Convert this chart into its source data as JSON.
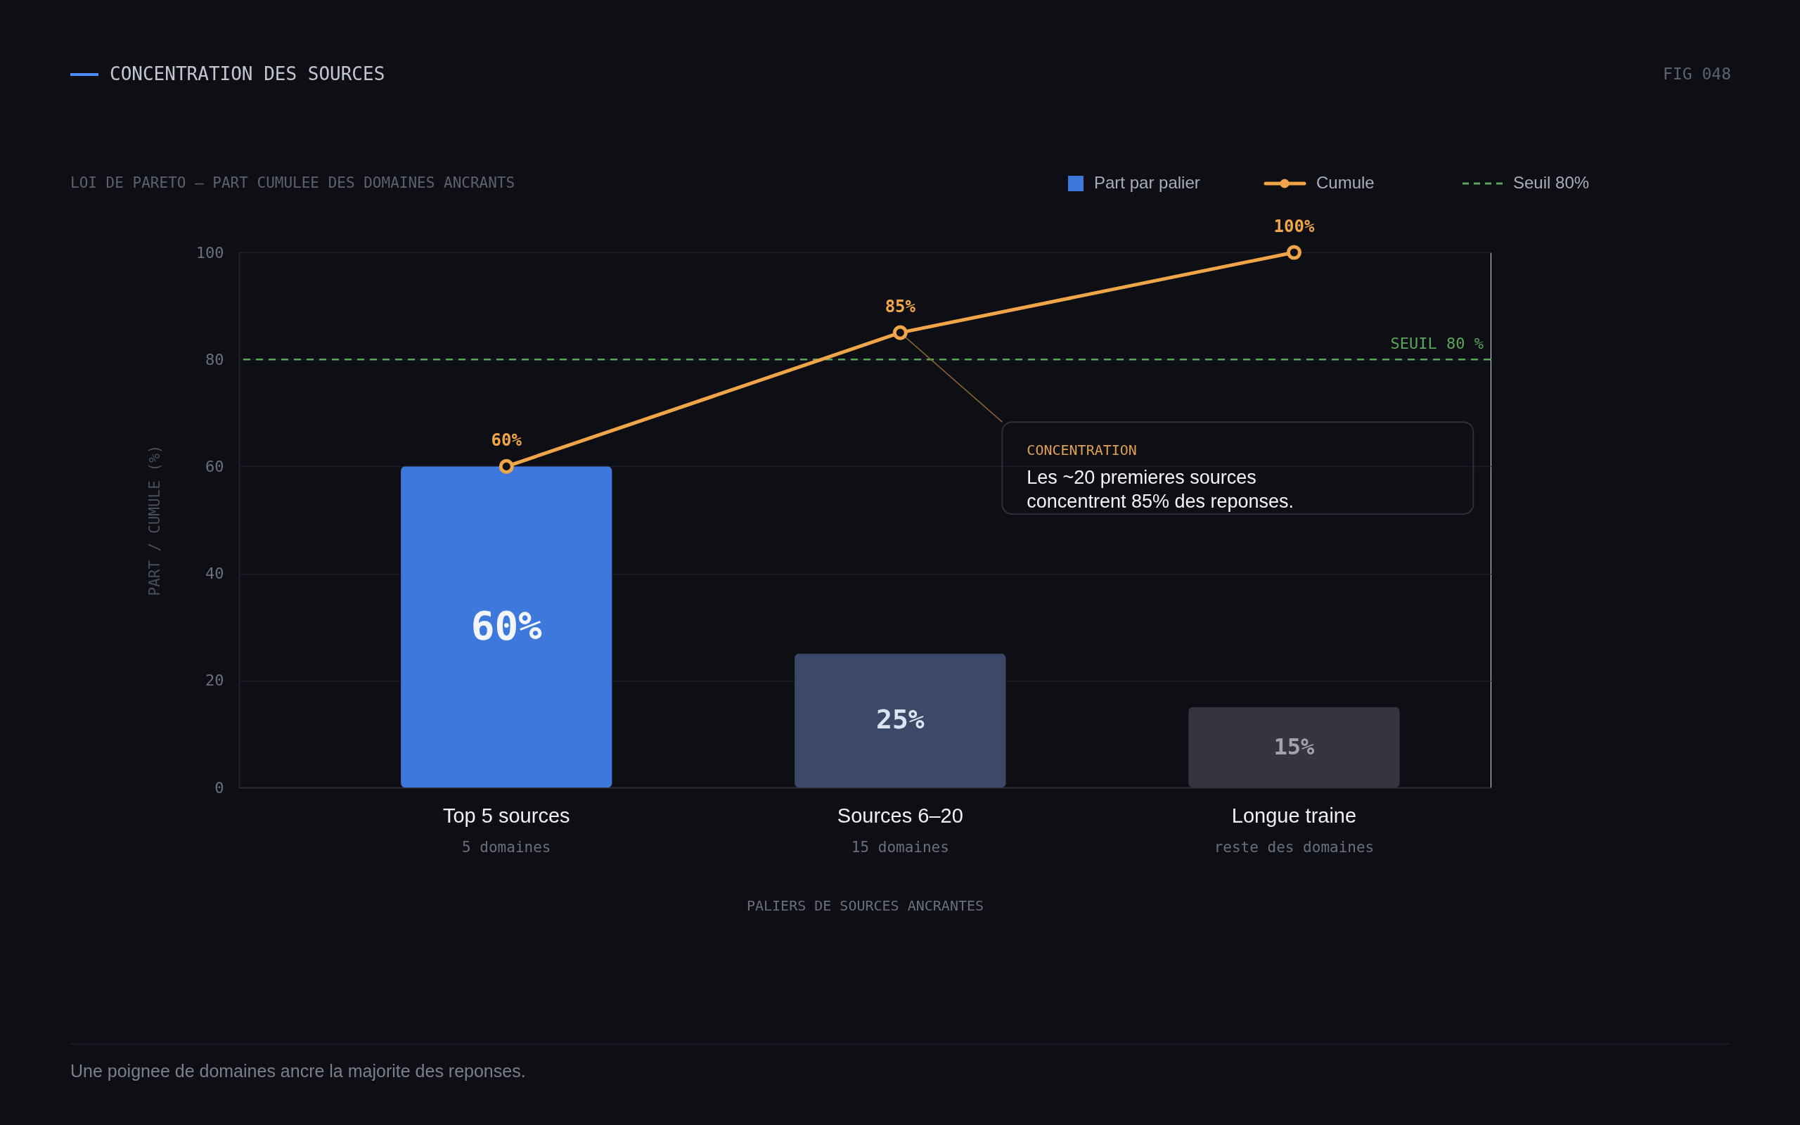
{
  "chart_data": {
    "type": "bar",
    "title": "CONCENTRATION DES SOURCES",
    "subtitle": "LOI DE PARETO — PART CUMULEE DES DOMAINES ANCRANTS",
    "xlabel": "PALIERS DE SOURCES ANCRANTES",
    "ylabel": "PART / CUMULE (%)",
    "categories": [
      "Top 5 sources",
      "Sources 6–20",
      "Longue traine"
    ],
    "series": [
      {
        "name": "Part par palier",
        "colors": [
          "#3f78dc",
          "#3b4868",
          "#34353e"
        ],
        "values": [
          60,
          25,
          15
        ],
        "value_labels": [
          "60%",
          "25%",
          "15%"
        ]
      },
      {
        "name": "Cumule",
        "type": "line",
        "color": "#f0a548",
        "values": [
          60,
          85,
          100
        ],
        "value_labels": [
          "60%",
          "85%",
          "100%"
        ]
      }
    ],
    "marker": "circle",
    "ylim": [
      0,
      100
    ],
    "yticks": [
      0,
      20,
      40,
      60,
      80,
      100
    ],
    "grid": "y",
    "legend": "top right",
    "ref_lines": [
      {
        "axis": "y",
        "value": 80,
        "label": "SEUIL 80 %",
        "color": "#5aa55a",
        "line_style": "dashed"
      }
    ],
    "annotations": [
      "FIG 048",
      "CONCENTRATION",
      "Les ~20 premieres sources concentrent 85% des reponses.",
      "Seuil 80%",
      "5 domaines",
      "15 domaines",
      "reste des domaines",
      "Une poignee de domaines ancre la majorite des reponses."
    ]
  }
}
